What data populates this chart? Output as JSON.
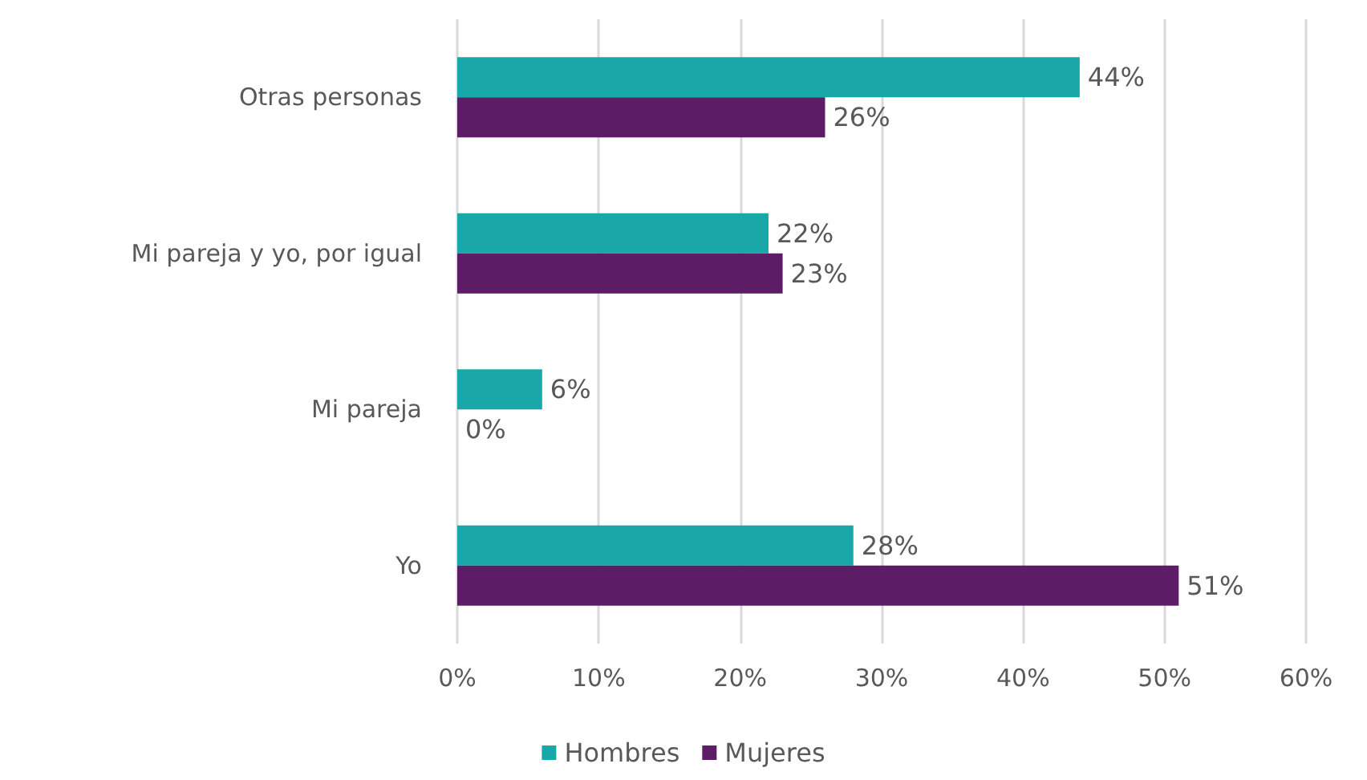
{
  "chart_data": {
    "type": "bar",
    "orientation": "horizontal",
    "categories": [
      "Otras personas",
      "Mi pareja y yo, por igual",
      "Mi pareja",
      "Yo"
    ],
    "series": [
      {
        "name": "Hombres",
        "color": "#1aa7a8",
        "values": [
          44,
          22,
          6,
          28
        ],
        "value_labels": [
          "44%",
          "22%",
          "6%",
          "28%"
        ]
      },
      {
        "name": "Mujeres",
        "color": "#5c1c66",
        "values": [
          26,
          23,
          0,
          51
        ],
        "value_labels": [
          "26%",
          "23%",
          "0%",
          "51%"
        ]
      }
    ],
    "xlim": [
      0,
      60
    ],
    "xticks": [
      {
        "value": 0,
        "label": "0%"
      },
      {
        "value": 10,
        "label": "10%"
      },
      {
        "value": 20,
        "label": "20%"
      },
      {
        "value": 30,
        "label": "30%"
      },
      {
        "value": 40,
        "label": "40%"
      },
      {
        "value": 50,
        "label": "50%"
      },
      {
        "value": 60,
        "label": "60%"
      }
    ],
    "grid": "x",
    "legend": "bottom"
  }
}
